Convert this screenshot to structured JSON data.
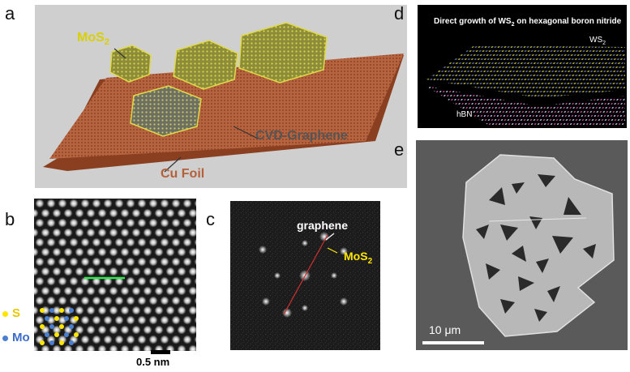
{
  "figure": {
    "panels": {
      "a": {
        "letter": "a",
        "mos2_label": "MoS",
        "mos2_sub": "2",
        "graphene_label": "CVD-Graphene",
        "foil_label": "Cu Foil"
      },
      "b": {
        "letter": "b",
        "s_label": "S",
        "mo_label": "Mo",
        "scale_label": "0.5 nm"
      },
      "c": {
        "letter": "c",
        "graphene_label": "graphene",
        "mos2_label": "MoS",
        "mos2_sub": "2"
      },
      "d": {
        "letter": "d",
        "title_pre": "Direct growth of WS",
        "title_sub": "2",
        "title_post": " on hexagonal boron nitride",
        "ws2_label": "WS",
        "ws2_sub": "2",
        "hbn_label": "hBN"
      },
      "e": {
        "letter": "e",
        "scale_label": "10 μm"
      }
    },
    "colors": {
      "mos2_label": "#d8d000",
      "s_atom": "#ffe600",
      "mo_atom": "#4a7fd0",
      "cu_foil": "#b4603a",
      "graphene_label": "#555555"
    }
  }
}
